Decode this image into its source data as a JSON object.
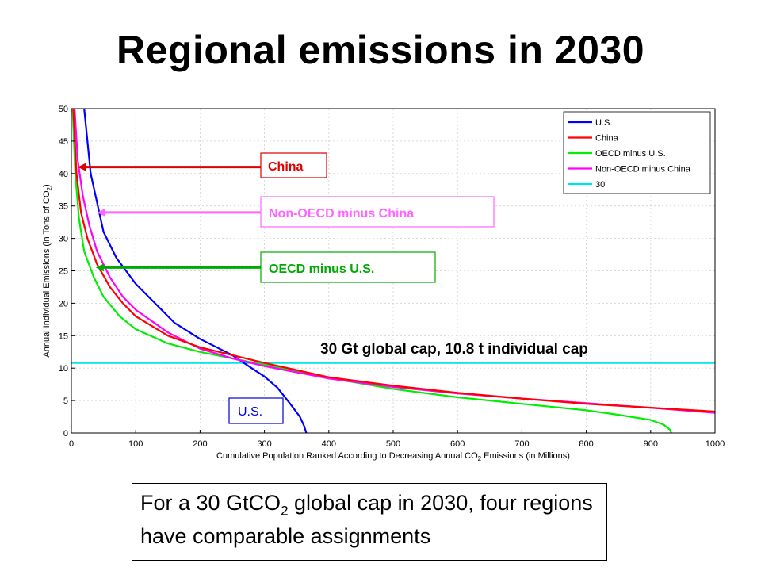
{
  "title": "Regional emissions in 2030",
  "caption": {
    "before_sub": "For a 30 GtCO",
    "sub": "2",
    "after_sub": " global cap in 2030, four regions have comparable assignments"
  },
  "chart_data": {
    "type": "line",
    "xlabel": {
      "before_sub": "Cumulative Population Ranked According to Decreasing Annual CO",
      "sub": "2",
      "after_sub": " Emissions (in Millions)"
    },
    "ylabel": {
      "before_sub": "Annual Individual Emissions (in Tons of CO",
      "sub": "2",
      "after_sub": ")"
    },
    "xlim": [
      0,
      1000
    ],
    "ylim": [
      0,
      50
    ],
    "xticks": [
      0,
      100,
      200,
      300,
      400,
      500,
      600,
      700,
      800,
      900,
      1000
    ],
    "yticks": [
      0,
      5,
      10,
      15,
      20,
      25,
      30,
      35,
      40,
      45,
      50
    ],
    "grid": true,
    "legend_position": "top-right",
    "series": [
      {
        "name": "U.S.",
        "color": "#0000ff",
        "x": [
          20,
          30,
          50,
          70,
          100,
          130,
          160,
          200,
          250,
          280,
          300,
          320,
          340,
          355,
          362,
          365
        ],
        "y": [
          50,
          40,
          31,
          27,
          23,
          20,
          17,
          14.5,
          12,
          10,
          8.7,
          7,
          4.5,
          2.5,
          1,
          0
        ]
      },
      {
        "name": "China",
        "color": "#ff0000",
        "x": [
          3,
          8,
          15,
          25,
          40,
          60,
          80,
          100,
          150,
          200,
          250,
          300,
          400,
          500,
          600,
          700,
          800,
          900,
          1000
        ],
        "y": [
          50,
          40,
          34,
          30,
          26,
          22.5,
          20,
          18,
          15,
          13.2,
          12,
          10.8,
          8.6,
          7.3,
          6.2,
          5.3,
          4.5,
          3.9,
          3.3
        ]
      },
      {
        "name": "OECD minus U.S.",
        "color": "#00ee00",
        "x": [
          2,
          6,
          12,
          20,
          35,
          50,
          75,
          100,
          150,
          200,
          250,
          300,
          400,
          500,
          600,
          700,
          800,
          850,
          900,
          920,
          930,
          932
        ],
        "y": [
          50,
          40,
          33,
          28,
          24,
          21,
          18,
          16,
          13.8,
          12.5,
          11.5,
          10.5,
          8.5,
          6.8,
          5.5,
          4.5,
          3.5,
          2.8,
          2,
          1.3,
          0.5,
          0
        ]
      },
      {
        "name": "Non-OECD minus China",
        "color": "#ff00ff",
        "x": [
          5,
          10,
          18,
          28,
          40,
          60,
          80,
          100,
          150,
          200,
          250,
          300,
          400,
          500,
          600,
          700,
          800,
          900,
          1000
        ],
        "y": [
          50,
          42,
          36.5,
          32,
          28,
          24,
          21,
          19,
          15.5,
          13,
          11.5,
          10.3,
          8.4,
          7.1,
          6.1,
          5.3,
          4.6,
          3.9,
          3.1
        ]
      },
      {
        "name": "30",
        "color": "#00e5e5",
        "x": [
          0,
          1000
        ],
        "y": [
          10.8,
          10.8
        ]
      }
    ],
    "annotations": {
      "china": {
        "text": "China",
        "color": "#dd0000",
        "target": [
          10,
          41
        ]
      },
      "non_oecd": {
        "text": "Non-OECD minus China",
        "color": "#ff66ff",
        "target": [
          40,
          34
        ]
      },
      "oecd": {
        "text": "OECD minus U.S.",
        "color": "#00aa00",
        "target": [
          38,
          25.5
        ]
      },
      "us": {
        "text": "U.S.",
        "color": "#0000dd"
      },
      "cap": {
        "text": "30 Gt global cap, 10.8 t individual cap"
      }
    }
  }
}
